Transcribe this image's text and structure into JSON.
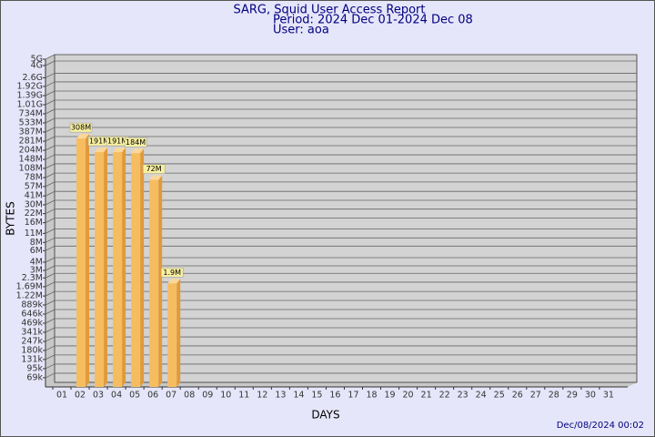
{
  "chart_data": {
    "type": "bar",
    "title": "SARG, Squid User Access Report",
    "subtitle": [
      "Period: 2024 Dec 01-2024 Dec 08",
      "User: aoa"
    ],
    "y_label": "BYTES",
    "x_label": "DAYS",
    "footer": "Dec/08/2024 00:02",
    "categories": [
      "01",
      "02",
      "03",
      "04",
      "05",
      "06",
      "07",
      "08",
      "09",
      "10",
      "11",
      "12",
      "13",
      "14",
      "15",
      "16",
      "17",
      "18",
      "19",
      "20",
      "21",
      "22",
      "23",
      "24",
      "25",
      "26",
      "27",
      "28",
      "29",
      "30",
      "31"
    ],
    "values": [
      null,
      308000000,
      191000000,
      191000000,
      184000000,
      72000000,
      1900000,
      null,
      null,
      null,
      null,
      null,
      null,
      null,
      null,
      null,
      null,
      null,
      null,
      null,
      null,
      null,
      null,
      null,
      null,
      null,
      null,
      null,
      null,
      null,
      null
    ],
    "value_labels": [
      null,
      "308M",
      "191M",
      "191M",
      "184M",
      "72M",
      "1.9M",
      null,
      null,
      null,
      null,
      null,
      null,
      null,
      null,
      null,
      null,
      null,
      null,
      null,
      null,
      null,
      null,
      null,
      null,
      null,
      null,
      null,
      null,
      null,
      null
    ],
    "color": "#f6bd60",
    "log_scale": true,
    "grid": true,
    "ylim": [
      50000,
      5000000000
    ],
    "yticks": [
      {
        "value": 69000,
        "label": "69k"
      },
      {
        "value": 95000,
        "label": "95k"
      },
      {
        "value": 131000,
        "label": "131k"
      },
      {
        "value": 180000,
        "label": "180k"
      },
      {
        "value": 247000,
        "label": "247k"
      },
      {
        "value": 341000,
        "label": "341k"
      },
      {
        "value": 469000,
        "label": "469k"
      },
      {
        "value": 646000,
        "label": "646k"
      },
      {
        "value": 889000,
        "label": "889k"
      },
      {
        "value": 1220000,
        "label": "1.22M"
      },
      {
        "value": 1690000,
        "label": "1.69M"
      },
      {
        "value": 2300000,
        "label": "2.3M"
      },
      {
        "value": 3000000,
        "label": "3M"
      },
      {
        "value": 4000000,
        "label": "4M"
      },
      {
        "value": 6000000,
        "label": "6M"
      },
      {
        "value": 8000000,
        "label": "8M"
      },
      {
        "value": 11000000,
        "label": "11M"
      },
      {
        "value": 16000000,
        "label": "16M"
      },
      {
        "value": 22000000,
        "label": "22M"
      },
      {
        "value": 30000000,
        "label": "30M"
      },
      {
        "value": 41000000,
        "label": "41M"
      },
      {
        "value": 57000000,
        "label": "57M"
      },
      {
        "value": 78000000,
        "label": "78M"
      },
      {
        "value": 108000000,
        "label": "108M"
      },
      {
        "value": 148000000,
        "label": "148M"
      },
      {
        "value": 204000000,
        "label": "204M"
      },
      {
        "value": 281000000,
        "label": "281M"
      },
      {
        "value": 387000000,
        "label": "387M"
      },
      {
        "value": 533000000,
        "label": "533M"
      },
      {
        "value": 734000000,
        "label": "734M"
      },
      {
        "value": 1010000000,
        "label": "1.01G"
      },
      {
        "value": 1390000000,
        "label": "1.39G"
      },
      {
        "value": 1920000000,
        "label": "1.92G"
      },
      {
        "value": 2600000000,
        "label": "2.6G"
      },
      {
        "value": 4000000000,
        "label": "4G"
      },
      {
        "value": 5000000000,
        "label": "5G"
      }
    ]
  }
}
